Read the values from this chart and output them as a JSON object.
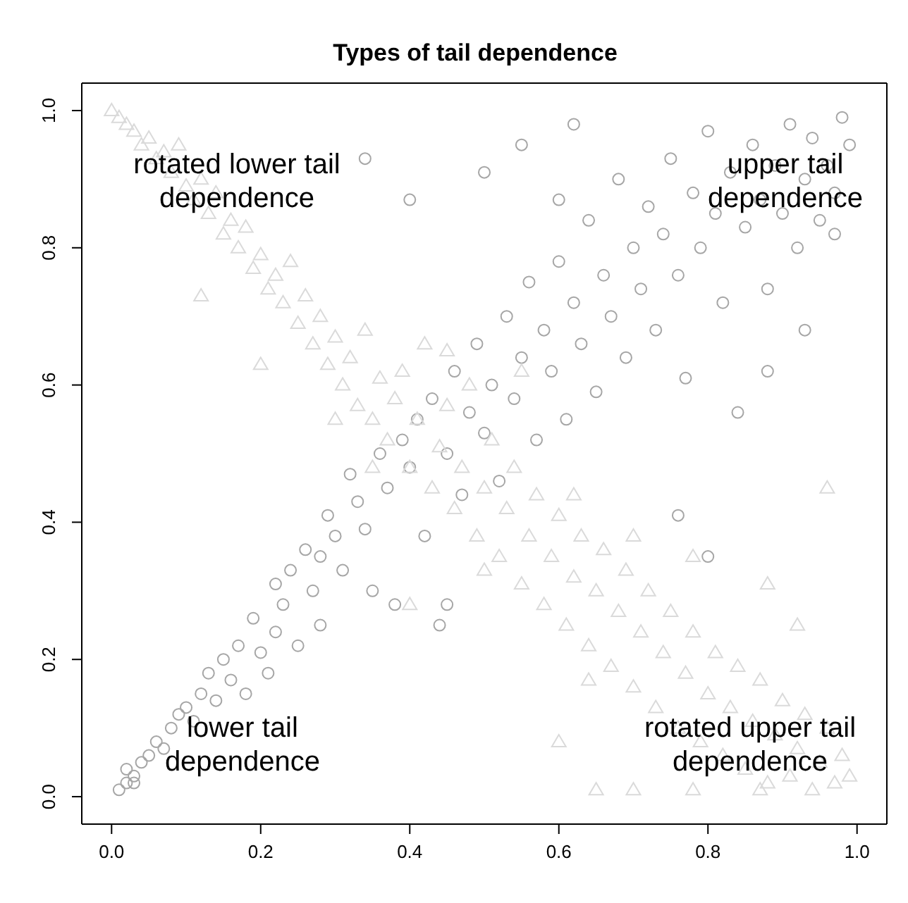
{
  "chart_data": {
    "type": "scatter",
    "title": "Types of tail dependence",
    "xlim": [
      -0.04,
      1.04
    ],
    "ylim": [
      -0.04,
      1.04
    ],
    "xticks": [
      {
        "value": 0,
        "label": "0.0"
      },
      {
        "value": 0.2,
        "label": "0.2"
      },
      {
        "value": 0.4,
        "label": "0.4"
      },
      {
        "value": 0.6,
        "label": "0.6"
      },
      {
        "value": 0.8,
        "label": "0.8"
      },
      {
        "value": 1,
        "label": "1.0"
      }
    ],
    "yticks": [
      {
        "value": 0,
        "label": "0.0"
      },
      {
        "value": 0.2,
        "label": "0.2"
      },
      {
        "value": 0.4,
        "label": "0.4"
      },
      {
        "value": 0.6,
        "label": "0.6"
      },
      {
        "value": 0.8,
        "label": "0.8"
      },
      {
        "value": 1,
        "label": "1.0"
      }
    ],
    "annotations": [
      "rotated lower tail dependence",
      "upper tail dependence",
      "lower tail dependence",
      "rotated upper tail dependence"
    ],
    "series": [
      {
        "marker": "circle",
        "color": "#a6a6a6",
        "x": [
          0.01,
          0.02,
          0.03,
          0.02,
          0.04,
          0.05,
          0.03,
          0.06,
          0.07,
          0.08,
          0.09,
          0.1,
          0.12,
          0.11,
          0.13,
          0.14,
          0.15,
          0.16,
          0.17,
          0.18,
          0.19,
          0.2,
          0.21,
          0.22,
          0.22,
          0.23,
          0.24,
          0.25,
          0.26,
          0.27,
          0.28,
          0.28,
          0.29,
          0.3,
          0.31,
          0.32,
          0.33,
          0.34,
          0.35,
          0.36,
          0.37,
          0.38,
          0.39,
          0.4,
          0.41,
          0.42,
          0.43,
          0.44,
          0.45,
          0.46,
          0.47,
          0.48,
          0.49,
          0.5,
          0.51,
          0.52,
          0.53,
          0.54,
          0.55,
          0.56,
          0.57,
          0.58,
          0.59,
          0.6,
          0.61,
          0.62,
          0.63,
          0.64,
          0.65,
          0.66,
          0.67,
          0.68,
          0.69,
          0.7,
          0.71,
          0.72,
          0.73,
          0.74,
          0.75,
          0.76,
          0.77,
          0.78,
          0.79,
          0.8,
          0.81,
          0.82,
          0.83,
          0.84,
          0.85,
          0.86,
          0.87,
          0.88,
          0.89,
          0.9,
          0.91,
          0.92,
          0.93,
          0.94,
          0.95,
          0.96,
          0.97,
          0.98,
          0.99,
          0.97,
          0.93,
          0.88,
          0.8,
          0.76,
          0.6,
          0.5,
          0.4,
          0.34,
          0.45,
          0.55,
          0.62
        ],
        "values": [
          0.01,
          0.02,
          0.03,
          0.04,
          0.05,
          0.06,
          0.02,
          0.08,
          0.07,
          0.1,
          0.12,
          0.13,
          0.15,
          0.11,
          0.18,
          0.14,
          0.2,
          0.17,
          0.22,
          0.15,
          0.26,
          0.21,
          0.18,
          0.24,
          0.31,
          0.28,
          0.33,
          0.22,
          0.36,
          0.3,
          0.35,
          0.25,
          0.41,
          0.38,
          0.33,
          0.47,
          0.43,
          0.39,
          0.3,
          0.5,
          0.45,
          0.28,
          0.52,
          0.48,
          0.55,
          0.38,
          0.58,
          0.25,
          0.5,
          0.62,
          0.44,
          0.56,
          0.66,
          0.53,
          0.6,
          0.46,
          0.7,
          0.58,
          0.64,
          0.75,
          0.52,
          0.68,
          0.62,
          0.78,
          0.55,
          0.72,
          0.66,
          0.84,
          0.59,
          0.76,
          0.7,
          0.9,
          0.64,
          0.8,
          0.74,
          0.86,
          0.68,
          0.82,
          0.93,
          0.76,
          0.61,
          0.88,
          0.8,
          0.97,
          0.85,
          0.72,
          0.91,
          0.56,
          0.83,
          0.95,
          0.87,
          0.74,
          0.92,
          0.85,
          0.98,
          0.8,
          0.9,
          0.96,
          0.84,
          0.92,
          0.88,
          0.99,
          0.95,
          0.82,
          0.68,
          0.62,
          0.35,
          0.41,
          0.87,
          0.91,
          0.87,
          0.93,
          0.28,
          0.95,
          0.98
        ]
      },
      {
        "marker": "triangle",
        "color": "#dadada",
        "x": [
          0.0,
          0.01,
          0.02,
          0.03,
          0.04,
          0.05,
          0.06,
          0.07,
          0.08,
          0.09,
          0.1,
          0.11,
          0.12,
          0.13,
          0.14,
          0.15,
          0.16,
          0.17,
          0.18,
          0.19,
          0.2,
          0.21,
          0.22,
          0.23,
          0.24,
          0.25,
          0.26,
          0.27,
          0.28,
          0.29,
          0.3,
          0.31,
          0.32,
          0.33,
          0.34,
          0.35,
          0.36,
          0.37,
          0.38,
          0.39,
          0.4,
          0.41,
          0.42,
          0.43,
          0.44,
          0.45,
          0.46,
          0.47,
          0.48,
          0.49,
          0.5,
          0.51,
          0.52,
          0.53,
          0.54,
          0.55,
          0.56,
          0.57,
          0.58,
          0.59,
          0.6,
          0.61,
          0.62,
          0.63,
          0.64,
          0.65,
          0.66,
          0.67,
          0.68,
          0.69,
          0.7,
          0.71,
          0.72,
          0.73,
          0.74,
          0.75,
          0.76,
          0.77,
          0.78,
          0.79,
          0.8,
          0.81,
          0.82,
          0.83,
          0.84,
          0.85,
          0.86,
          0.87,
          0.88,
          0.89,
          0.9,
          0.91,
          0.92,
          0.93,
          0.94,
          0.95,
          0.96,
          0.97,
          0.98,
          0.99,
          0.12,
          0.2,
          0.3,
          0.45,
          0.35,
          0.55,
          0.62,
          0.7,
          0.78,
          0.88,
          0.96,
          0.92,
          0.6,
          0.65,
          0.7,
          0.78,
          0.87,
          0.64,
          0.5,
          0.4
        ],
        "values": [
          1.0,
          0.99,
          0.98,
          0.97,
          0.95,
          0.96,
          0.93,
          0.94,
          0.91,
          0.95,
          0.89,
          0.87,
          0.9,
          0.85,
          0.88,
          0.82,
          0.84,
          0.8,
          0.83,
          0.77,
          0.79,
          0.74,
          0.76,
          0.72,
          0.78,
          0.69,
          0.73,
          0.66,
          0.7,
          0.63,
          0.67,
          0.6,
          0.64,
          0.57,
          0.68,
          0.55,
          0.61,
          0.52,
          0.58,
          0.62,
          0.48,
          0.55,
          0.66,
          0.45,
          0.51,
          0.57,
          0.42,
          0.48,
          0.6,
          0.38,
          0.45,
          0.52,
          0.35,
          0.42,
          0.48,
          0.31,
          0.38,
          0.44,
          0.28,
          0.35,
          0.41,
          0.25,
          0.32,
          0.38,
          0.22,
          0.3,
          0.36,
          0.19,
          0.27,
          0.33,
          0.16,
          0.24,
          0.3,
          0.13,
          0.21,
          0.27,
          0.1,
          0.18,
          0.24,
          0.08,
          0.15,
          0.21,
          0.06,
          0.13,
          0.19,
          0.04,
          0.11,
          0.17,
          0.02,
          0.09,
          0.14,
          0.03,
          0.07,
          0.12,
          0.01,
          0.05,
          0.1,
          0.02,
          0.06,
          0.03,
          0.73,
          0.63,
          0.55,
          0.65,
          0.48,
          0.62,
          0.44,
          0.38,
          0.35,
          0.31,
          0.45,
          0.25,
          0.08,
          0.01,
          0.01,
          0.01,
          0.01,
          0.17,
          0.33,
          0.28
        ]
      }
    ]
  }
}
